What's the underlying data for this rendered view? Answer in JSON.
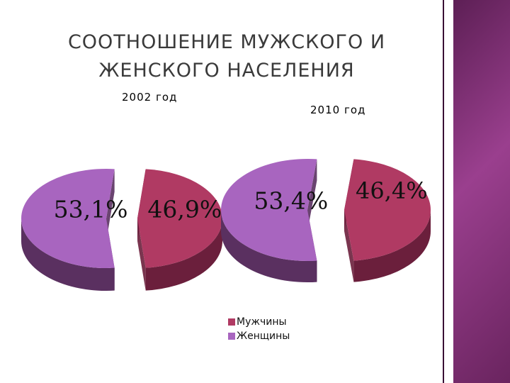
{
  "slide": {
    "title_line1": "СООТНОШЕНИЕ МУЖСКОГО И",
    "title_line2": "ЖЕНСКОГО НАСЕЛЕНИЯ"
  },
  "colors": {
    "men": "#b03a63",
    "men_side": "#6b1f3c",
    "women": "#a865bf",
    "women_side": "#5a3060",
    "accent_stripe": "#8b3a80"
  },
  "chart_data": [
    {
      "type": "pie",
      "subtitle": "2002 год",
      "categories": [
        "Мужчины",
        "Женщины"
      ],
      "values": [
        46.9,
        53.1
      ],
      "labels": [
        "46,9%",
        "53,1%"
      ],
      "exploded": true
    },
    {
      "type": "pie",
      "subtitle": "2010 год",
      "categories": [
        "Мужчины",
        "Женщины"
      ],
      "values": [
        46.4,
        53.4
      ],
      "labels": [
        "46,4%",
        "53,4%"
      ],
      "exploded": true
    }
  ],
  "legend": {
    "position": "bottom-center",
    "items": [
      {
        "label": "Мужчины",
        "color": "#b03a63"
      },
      {
        "label": "Женщины",
        "color": "#a865bf"
      }
    ]
  }
}
